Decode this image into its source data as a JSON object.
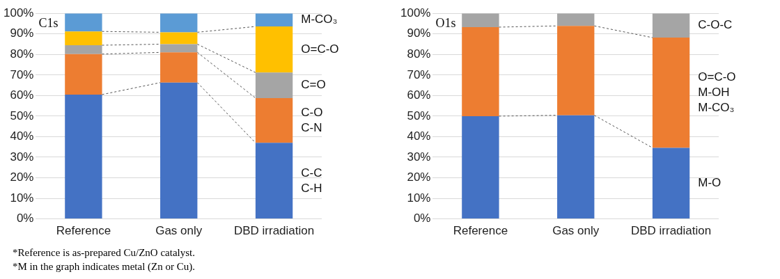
{
  "chart_data": [
    {
      "type": "bar",
      "title": "C1s",
      "stacked": true,
      "categories": [
        "Reference",
        "Gas only",
        "DBD irradiation"
      ],
      "series": [
        {
          "name": "C-C C-H",
          "color": "#4472c4",
          "values": [
            60.5,
            66.3,
            37
          ]
        },
        {
          "name": "C-O C-N",
          "color": "#ed7d31",
          "values": [
            19.7,
            14.7,
            21.8
          ]
        },
        {
          "name": "C=O",
          "color": "#a5a5a5",
          "values": [
            4.3,
            4,
            12.4
          ]
        },
        {
          "name": "O=C-O",
          "color": "#ffc000",
          "values": [
            6.7,
            5.8,
            22.4
          ]
        },
        {
          "name": "M-CO₃",
          "color": "#5b9bd5",
          "values": [
            8.8,
            9.2,
            6.4
          ]
        }
      ],
      "ylim": [
        0,
        100
      ],
      "yticks": [
        {
          "value": 0,
          "label": "0%"
        },
        {
          "value": 10,
          "label": "10%"
        },
        {
          "value": 20,
          "label": "20%"
        },
        {
          "value": 30,
          "label": "30%"
        },
        {
          "value": 40,
          "label": "40%"
        },
        {
          "value": 50,
          "label": "50%"
        },
        {
          "value": 60,
          "label": "60%"
        },
        {
          "value": 70,
          "label": "70%"
        },
        {
          "value": 80,
          "label": "80%"
        },
        {
          "value": 90,
          "label": "90%"
        },
        {
          "value": 100,
          "label": "100%"
        }
      ],
      "grid": "y",
      "legend": false,
      "annotations": [
        "*Reference is as-prepared Cu/ZnO catalyst.",
        "*M in the graph indicates metal (Zn or Cu)."
      ]
    },
    {
      "type": "bar",
      "title": "O1s",
      "stacked": true,
      "categories": [
        "Reference",
        "Gas only",
        "DBD irradiation"
      ],
      "series": [
        {
          "name": "M-O",
          "color": "#4472c4",
          "values": [
            50,
            50.4,
            34.6
          ]
        },
        {
          "name": "O=C-O M-OH M-CO₃",
          "color": "#ed7d31",
          "values": [
            43.3,
            43.5,
            53.6
          ]
        },
        {
          "name": "C-O-C",
          "color": "#a5a5a5",
          "values": [
            6.7,
            6.1,
            11.8
          ]
        }
      ],
      "ylim": [
        0,
        100
      ],
      "yticks": [
        {
          "value": 0,
          "label": "0%"
        },
        {
          "value": 10,
          "label": "10%"
        },
        {
          "value": 20,
          "label": "20%"
        },
        {
          "value": 30,
          "label": "30%"
        },
        {
          "value": 40,
          "label": "40%"
        },
        {
          "value": 50,
          "label": "50%"
        },
        {
          "value": 60,
          "label": "60%"
        },
        {
          "value": 70,
          "label": "70%"
        },
        {
          "value": 80,
          "label": "80%"
        },
        {
          "value": 90,
          "label": "90%"
        },
        {
          "value": 100,
          "label": "100%"
        }
      ],
      "grid": "y",
      "legend": false
    }
  ]
}
